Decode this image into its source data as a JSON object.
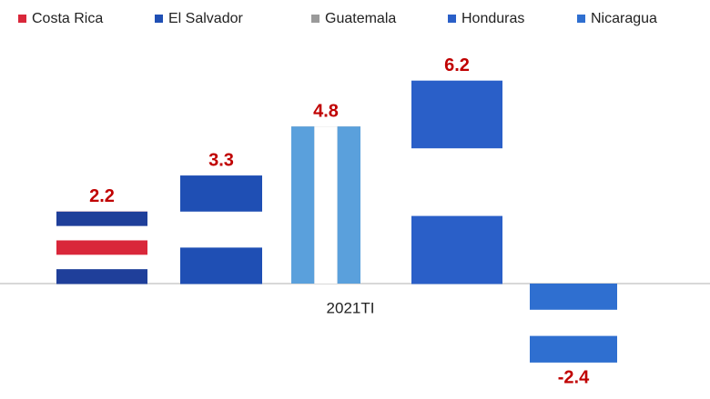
{
  "chart_data": {
    "type": "bar",
    "categories": [
      "2021TI"
    ],
    "series": [
      {
        "name": "Costa Rica",
        "color": "#d9273a",
        "values": [
          2.2
        ]
      },
      {
        "name": "El Salvador",
        "color": "#1f4fb4",
        "values": [
          3.3
        ]
      },
      {
        "name": "Guatemala",
        "color": "#9a9a9a",
        "values": [
          4.8
        ]
      },
      {
        "name": "Honduras",
        "color": "#2a5fc8",
        "values": [
          6.2
        ]
      },
      {
        "name": "Nicaragua",
        "color": "#2f6fd0",
        "values": [
          -2.4
        ]
      }
    ],
    "ylim": [
      -3.5,
      7.5
    ]
  }
}
